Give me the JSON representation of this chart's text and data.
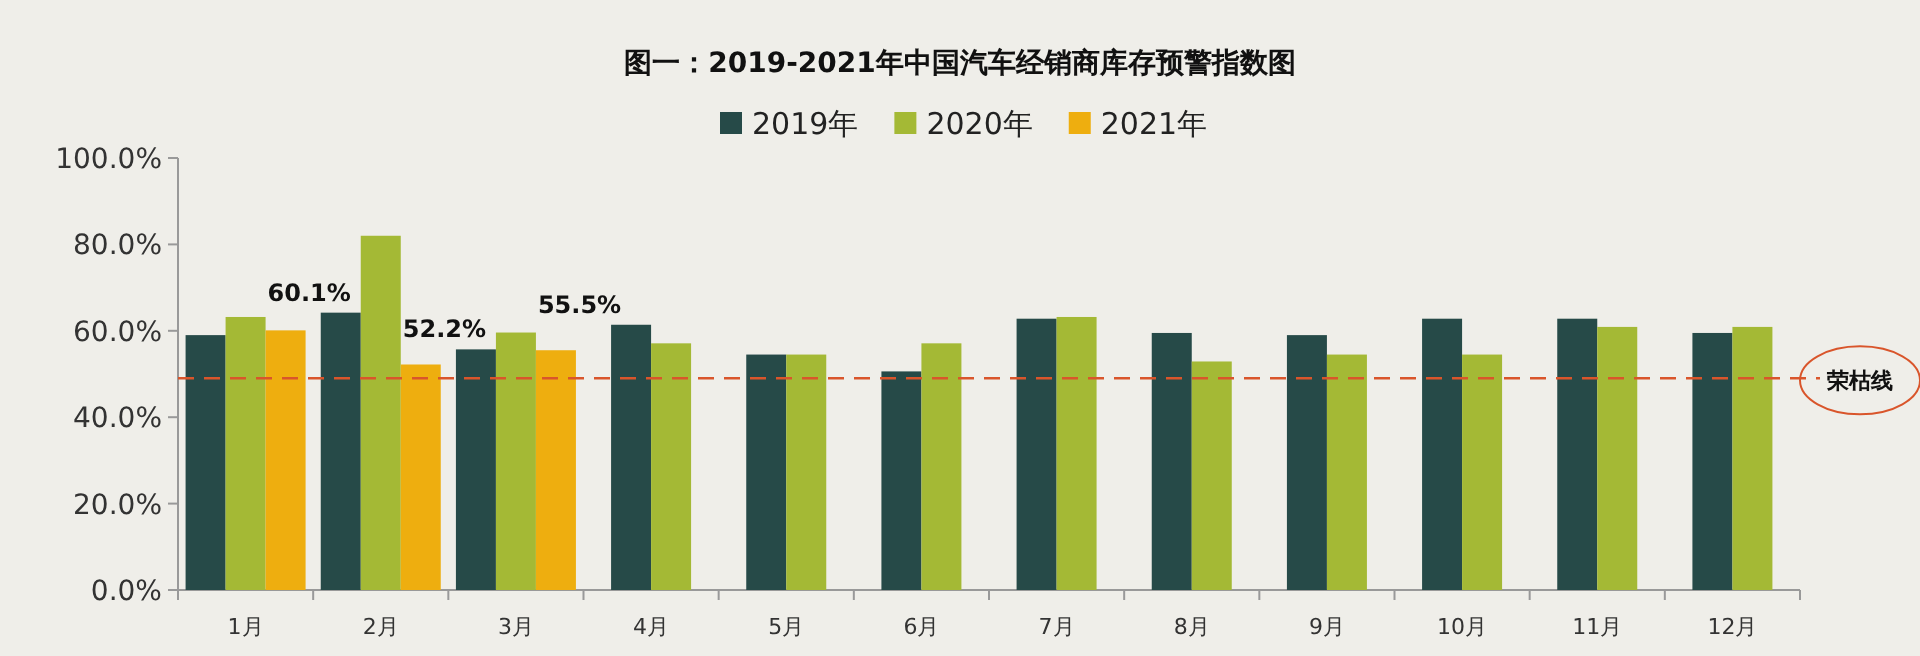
{
  "chart_data": {
    "type": "bar",
    "title": "图一：2019-2021年中国汽车经销商库存预警指数图",
    "categories": [
      "1月",
      "2月",
      "3月",
      "4月",
      "5月",
      "6月",
      "7月",
      "8月",
      "9月",
      "10月",
      "11月",
      "12月"
    ],
    "series": [
      {
        "name": "2019年",
        "color": "#264a48",
        "values": [
          59.0,
          64.2,
          55.7,
          61.4,
          54.5,
          50.6,
          62.8,
          59.5,
          59.0,
          62.8,
          62.8,
          59.5
        ]
      },
      {
        "name": "2020年",
        "color": "#a4b935",
        "values": [
          63.2,
          82.0,
          59.6,
          57.1,
          54.5,
          57.1,
          63.2,
          52.9,
          54.5,
          54.5,
          60.9,
          60.9
        ]
      },
      {
        "name": "2021年",
        "color": "#eeae0f",
        "values": [
          60.1,
          52.2,
          55.5,
          null,
          null,
          null,
          null,
          null,
          null,
          null,
          null,
          null
        ],
        "value_labels": [
          "60.1%",
          "52.2%",
          "55.5%",
          null,
          null,
          null,
          null,
          null,
          null,
          null,
          null,
          null
        ]
      }
    ],
    "ylim": [
      0,
      100
    ],
    "yticks": [
      {
        "value": 0,
        "label": "0.0%"
      },
      {
        "value": 20,
        "label": "20.0%"
      },
      {
        "value": 40,
        "label": "40.0%"
      },
      {
        "value": 60,
        "label": "60.0%"
      },
      {
        "value": 80,
        "label": "80.0%"
      },
      {
        "value": 100,
        "label": "100.0%"
      }
    ],
    "ref_lines": [
      {
        "axis": "y",
        "value": 49,
        "label": "荣枯线",
        "color": "#d9552b",
        "line_style": "dashed"
      }
    ],
    "legend": "top"
  }
}
